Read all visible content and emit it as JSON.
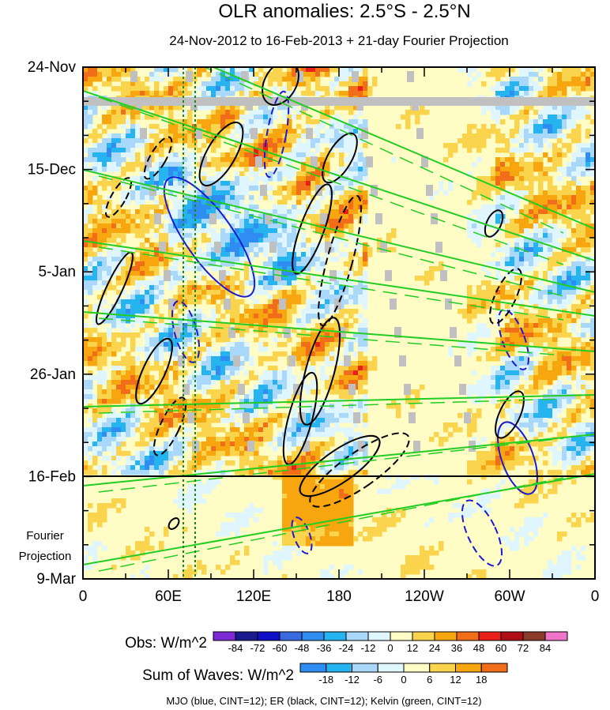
{
  "chart_data": {
    "type": "heatmap",
    "title": "OLR anomalies: 2.5°S - 2.5°N",
    "subtitle": "24-Nov-2012 to 16-Feb-2013 + 21-day Fourier Projection",
    "x_tick_labels": [
      "0",
      "60E",
      "120E",
      "180",
      "120W",
      "60W",
      "0"
    ],
    "x_tick_longitudes": [
      0,
      60,
      120,
      180,
      240,
      300,
      360
    ],
    "y_tick_labels": [
      "24-Nov",
      "15-Dec",
      "5-Jan",
      "26-Jan",
      "16-Feb",
      "9-Mar"
    ],
    "y_tick_days": [
      0,
      21,
      42,
      63,
      84,
      105
    ],
    "observation_end_day": 84,
    "projection_label_line1": "Fourier",
    "projection_label_line2": "Projection",
    "obs_colorbar": {
      "label": "Obs: W/m^2",
      "levels": [
        "-84",
        "-72",
        "-60",
        "-48",
        "-36",
        "-24",
        "-12",
        "0",
        "12",
        "24",
        "36",
        "48",
        "60",
        "72",
        "84"
      ],
      "colors": [
        "#7b2ad6",
        "#1a1a8c",
        "#1010c8",
        "#3a6ae0",
        "#2f8cf0",
        "#25b4f0",
        "#a9d8fa",
        "#e0f6ff",
        "#fffcc6",
        "#fbd44d",
        "#f8a60f",
        "#f26d19",
        "#e8201a",
        "#b00e16",
        "#8c3a2a",
        "#f075c8"
      ]
    },
    "waves_colorbar": {
      "label": "Sum of Waves: W/m^2",
      "levels": [
        "-18",
        "-12",
        "-6",
        "0",
        "6",
        "12",
        "18"
      ],
      "colors": [
        "#2f8cf0",
        "#25b4f0",
        "#a9d8fa",
        "#e0f6ff",
        "#fffcc6",
        "#fbd44d",
        "#f8a60f",
        "#f26d19"
      ]
    },
    "contour_legend": "MJO (blue, CINT=12); ER (black, CINT=12); Kelvin (green, CINT=12)",
    "contour_colors": {
      "mjo": "#1a1ad0",
      "er": "#000000",
      "kelvin": "#22cc22"
    }
  }
}
